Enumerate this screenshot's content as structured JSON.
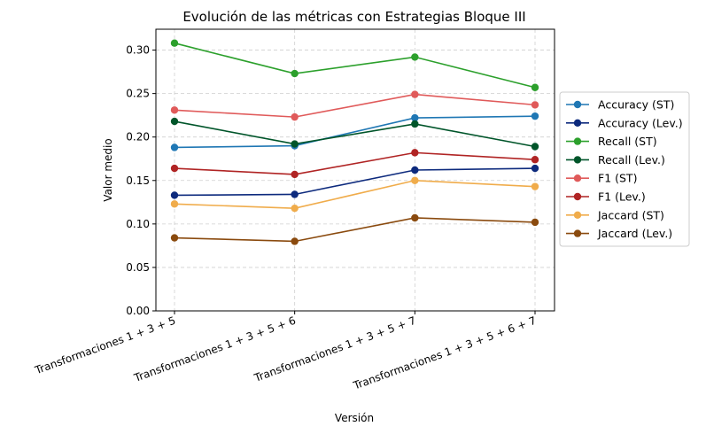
{
  "chart_data": {
    "type": "line",
    "title": "Evolución de las métricas con Estrategias Bloque III",
    "xlabel": "Versión",
    "ylabel": "Valor medio",
    "categories": [
      "Transformaciones 1 + 3 + 5",
      "Transformaciones 1 + 3 + 5 + 6",
      "Transformaciones 1 + 3 + 5 + 7",
      "Transformaciones 1 + 3 + 5 + 6 + 7"
    ],
    "ylim": [
      0,
      0.324
    ],
    "yticks": [
      "0.00",
      "0.05",
      "0.10",
      "0.15",
      "0.20",
      "0.25",
      "0.30"
    ],
    "grid": true,
    "legend_position": "right",
    "series": [
      {
        "name": "Accuracy (ST)",
        "color": "#1f77b4",
        "values": [
          0.188,
          0.19,
          0.222,
          0.224
        ]
      },
      {
        "name": "Accuracy (Lev.)",
        "color": "#0d2a7d",
        "values": [
          0.133,
          0.134,
          0.162,
          0.164
        ]
      },
      {
        "name": "Recall (ST)",
        "color": "#2ca02c",
        "values": [
          0.308,
          0.273,
          0.292,
          0.257
        ]
      },
      {
        "name": "Recall (Lev.)",
        "color": "#00552a",
        "values": [
          0.218,
          0.192,
          0.215,
          0.189
        ]
      },
      {
        "name": "F1 (ST)",
        "color": "#e05a5a",
        "values": [
          0.231,
          0.223,
          0.249,
          0.237
        ]
      },
      {
        "name": "F1 (Lev.)",
        "color": "#b02424",
        "values": [
          0.164,
          0.157,
          0.182,
          0.174
        ]
      },
      {
        "name": "Jaccard (ST)",
        "color": "#f0ac4b",
        "values": [
          0.123,
          0.118,
          0.15,
          0.143
        ]
      },
      {
        "name": "Jaccard (Lev.)",
        "color": "#8a4a0e",
        "values": [
          0.084,
          0.08,
          0.107,
          0.102
        ]
      }
    ]
  }
}
